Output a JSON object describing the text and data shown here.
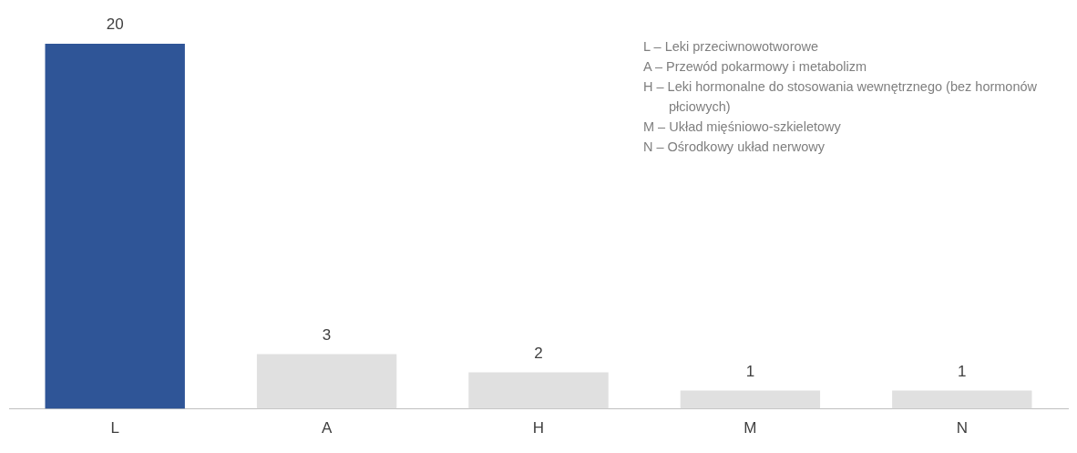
{
  "chart_data": {
    "type": "bar",
    "categories": [
      "L",
      "A",
      "H",
      "M",
      "N"
    ],
    "values": [
      20,
      3,
      2,
      1,
      1
    ],
    "colors": [
      "#2f5597",
      "#e0e0e0",
      "#e0e0e0",
      "#e0e0e0",
      "#e0e0e0"
    ],
    "data_labels": true,
    "grid": false,
    "legend": false,
    "annotations": [
      "L – Leki przeciwnowotworowe",
      "A – Przewód pokarmowy i metabolizm",
      "H – Leki hormonalne do stosowania wewnętrznego (bez hormonów płciowych)",
      "M – Układ mięśniowo-szkieletowy",
      "N – Ośrodkowy układ nerwowy"
    ]
  }
}
